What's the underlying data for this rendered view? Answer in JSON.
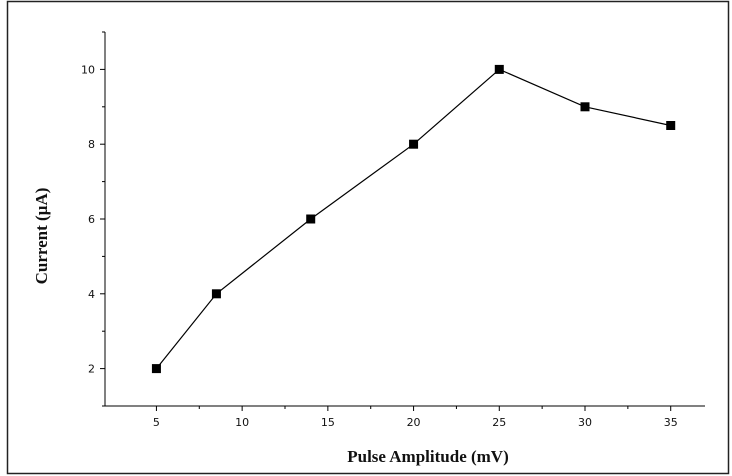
{
  "chart_data": {
    "type": "line",
    "xlabel": "Pulse Amplitude (mV)",
    "ylabel": "Current (µA)",
    "xlim": [
      2,
      37
    ],
    "ylim": [
      1,
      11
    ],
    "xticks": [
      5,
      10,
      15,
      20,
      25,
      30,
      35
    ],
    "yticks": [
      2,
      4,
      6,
      8,
      10
    ],
    "grid": false,
    "legend": "none",
    "series": [
      {
        "x": [
          5,
          8.5,
          14,
          20,
          25,
          30,
          35
        ],
        "y": [
          2,
          4,
          6,
          8,
          10,
          9,
          8.5
        ],
        "color": "#000000",
        "marker": "square"
      }
    ]
  }
}
